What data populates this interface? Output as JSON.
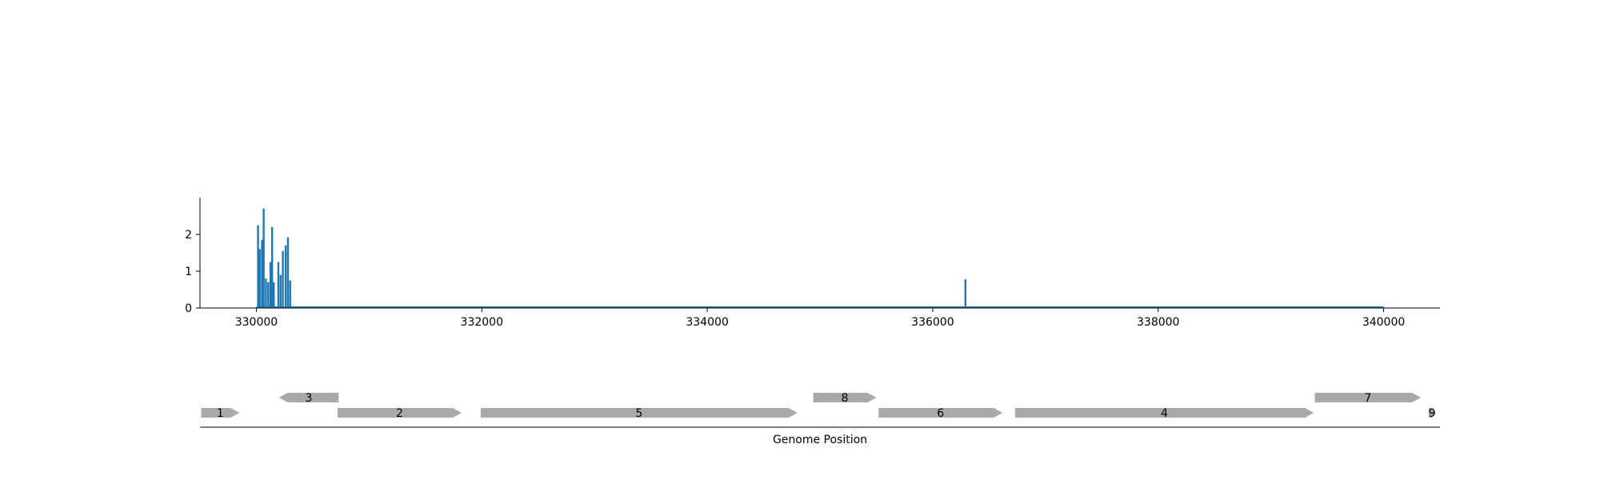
{
  "chart_data": [
    {
      "type": "bar",
      "title": "",
      "xlabel": "",
      "ylabel": "",
      "xlim": [
        329500,
        340500
      ],
      "ylim": [
        0,
        3
      ],
      "x_ticks": [
        "330000",
        "332000",
        "334000",
        "336000",
        "338000",
        "340000"
      ],
      "y_ticks": [
        "0",
        "1",
        "2"
      ],
      "color": "#1f77b4",
      "baseline_range": [
        330000,
        340000
      ],
      "points": [
        {
          "x": 330015,
          "y": 2.25
        },
        {
          "x": 330030,
          "y": 1.6
        },
        {
          "x": 330050,
          "y": 1.85
        },
        {
          "x": 330065,
          "y": 2.7
        },
        {
          "x": 330085,
          "y": 0.8
        },
        {
          "x": 330105,
          "y": 0.7
        },
        {
          "x": 330125,
          "y": 1.25
        },
        {
          "x": 330140,
          "y": 2.2
        },
        {
          "x": 330155,
          "y": 0.7
        },
        {
          "x": 330195,
          "y": 1.25
        },
        {
          "x": 330215,
          "y": 0.9
        },
        {
          "x": 330235,
          "y": 1.55
        },
        {
          "x": 330260,
          "y": 1.7
        },
        {
          "x": 330280,
          "y": 1.92
        },
        {
          "x": 330300,
          "y": 0.75
        },
        {
          "x": 336290,
          "y": 0.78
        }
      ]
    },
    {
      "type": "gene-track",
      "xlabel": "Genome Position",
      "xlim": [
        329500,
        340500
      ],
      "color": "#a9a9a9",
      "genes": [
        {
          "label": "1",
          "start": 329510,
          "end": 329850,
          "strand": "+",
          "row": 0
        },
        {
          "label": "3",
          "start": 330200,
          "end": 330730,
          "strand": "-",
          "row": 1
        },
        {
          "label": "2",
          "start": 330720,
          "end": 331820,
          "strand": "+",
          "row": 0
        },
        {
          "label": "5",
          "start": 331990,
          "end": 334800,
          "strand": "+",
          "row": 0
        },
        {
          "label": "8",
          "start": 334940,
          "end": 335500,
          "strand": "+",
          "row": 1
        },
        {
          "label": "6",
          "start": 335520,
          "end": 336620,
          "strand": "+",
          "row": 0
        },
        {
          "label": "4",
          "start": 336730,
          "end": 339380,
          "strand": "+",
          "row": 0
        },
        {
          "label": "7",
          "start": 339390,
          "end": 340330,
          "strand": "+",
          "row": 1
        },
        {
          "label": "9",
          "start": 340400,
          "end": 340460,
          "strand": "+",
          "row": 0
        }
      ]
    }
  ]
}
